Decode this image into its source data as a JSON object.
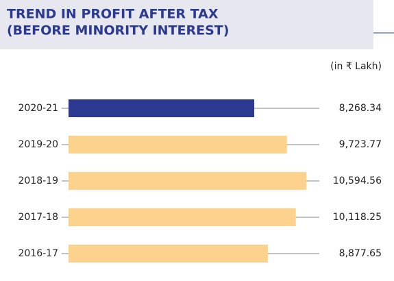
{
  "chart_data": {
    "type": "barh",
    "title": [
      "TREND IN PROFIT AFTER TAX",
      "(BEFORE MINORITY INTEREST)"
    ],
    "unit": "(in ₹ Lakh)",
    "categories": [
      "2020-21",
      "2019-20",
      "2018-19",
      "2017-18",
      "2016-17"
    ],
    "values": [
      8268.34,
      9723.77,
      10594.56,
      10118.25,
      8877.65
    ],
    "value_labels": [
      "8,268.34",
      "9,723.77",
      "10,594.56",
      "10,118.25",
      "8,877.65"
    ],
    "colors": [
      "#2b3990",
      "#fcd28c",
      "#fcd28c",
      "#fcd28c",
      "#fcd28c"
    ]
  }
}
